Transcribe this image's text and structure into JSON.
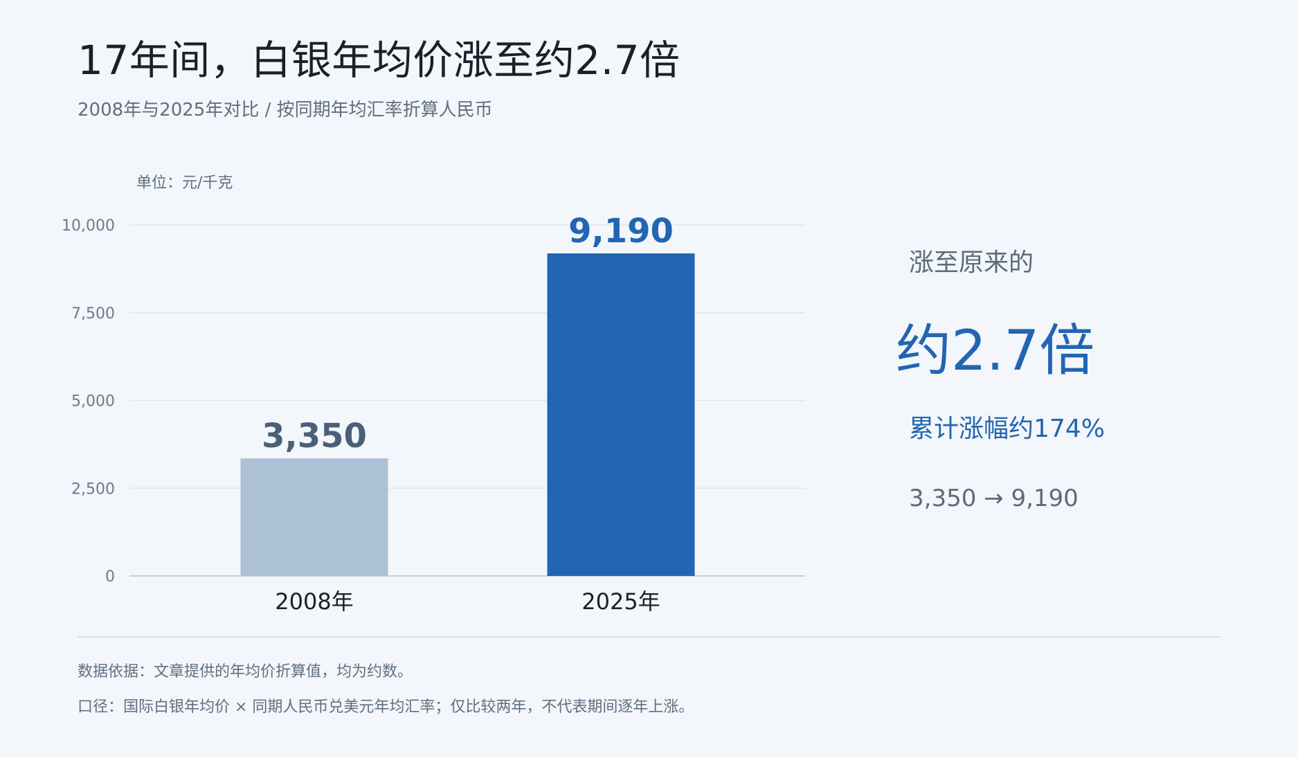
{
  "header": {
    "title": "17年间，白银年均价涨至约2.7倍",
    "subtitle": "2008年与2025年对比 / 按同期年均汇率折算人民币"
  },
  "chart_data": {
    "type": "bar",
    "unit_label": "单位：元/千克",
    "categories": [
      "2008年",
      "2025年"
    ],
    "values": [
      3350,
      9190
    ],
    "value_labels": [
      "3,350",
      "9,190"
    ],
    "ylim": [
      0,
      10000
    ],
    "yticks": [
      0,
      2500,
      5000,
      7500,
      10000
    ],
    "ytick_labels": [
      "0",
      "2,500",
      "5,000",
      "7,500",
      "10,000"
    ],
    "grid": true,
    "bar_colors": [
      "#adc1d6",
      "#2265b2"
    ],
    "value_label_colors": [
      "#4a5f78",
      "#2265b2"
    ]
  },
  "summary": {
    "lead": "涨至原来的",
    "multiple": "约2.7倍",
    "rise": "累计涨幅约174%",
    "range": "3,350 → 9,190"
  },
  "footnotes": {
    "source": "数据依据：文章提供的年均价折算值，均为约数。",
    "method": "口径：国际白银年均价 × 同期人民币兑美元年均汇率；仅比较两年，不代表期间逐年上涨。"
  }
}
